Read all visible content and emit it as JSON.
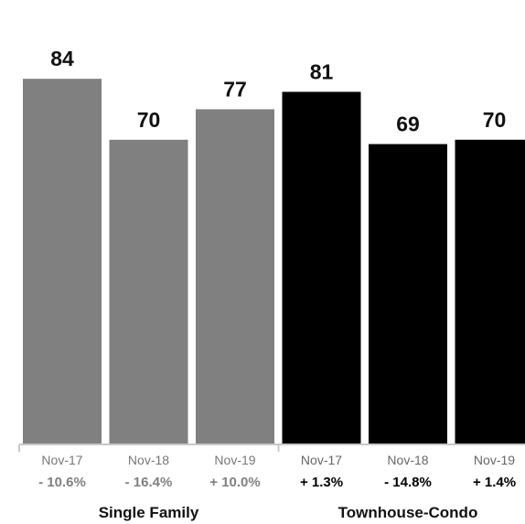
{
  "chart_data": {
    "type": "bar",
    "title": "",
    "xlabel": "",
    "ylabel": "",
    "ylim": [
      0,
      100
    ],
    "grid": false,
    "groups": [
      {
        "name": "Single Family",
        "color": "#808080",
        "date_color": "#777777",
        "pct_color": "#808080",
        "bars": [
          {
            "label": "Nov-17",
            "value": 84,
            "change": "- 10.6%"
          },
          {
            "label": "Nov-18",
            "value": 70,
            "change": "- 16.4%"
          },
          {
            "label": "Nov-19",
            "value": 77,
            "change": "+ 10.0%"
          }
        ]
      },
      {
        "name": "Townhouse-Condo",
        "color": "#000000",
        "date_color": "#666666",
        "pct_color": "#000000",
        "bars": [
          {
            "label": "Nov-17",
            "value": 81,
            "change": "+ 1.3%"
          },
          {
            "label": "Nov-18",
            "value": 69,
            "change": "- 14.8%"
          },
          {
            "label": "Nov-19",
            "value": 70,
            "change": "+ 1.4%"
          }
        ]
      }
    ]
  },
  "axis_color": "#c8c8c8"
}
